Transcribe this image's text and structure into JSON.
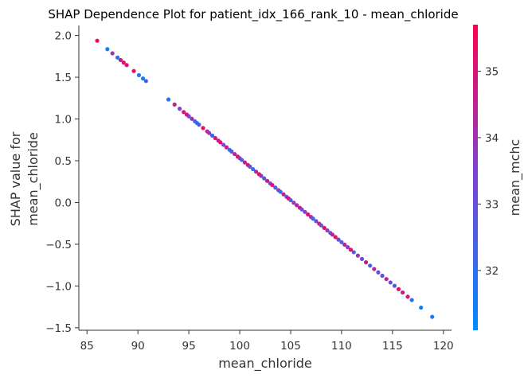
{
  "chart_data": {
    "type": "scatter",
    "title": "SHAP Dependence Plot for patient_idx_166_rank_10 - mean_chloride",
    "xlabel": "mean_chloride",
    "ylabel_lines": [
      "SHAP value for",
      "mean_chloride"
    ],
    "xlim": [
      84.2,
      120.8
    ],
    "ylim": [
      -1.53,
      2.12
    ],
    "xticks": [
      85,
      90,
      95,
      100,
      105,
      110,
      115,
      120
    ],
    "yticks": [
      -1.5,
      -1.0,
      -0.5,
      0.0,
      0.5,
      1.0,
      1.5,
      2.0
    ],
    "xtick_labels": [
      "85",
      "90",
      "95",
      "100",
      "105",
      "110",
      "115",
      "120"
    ],
    "ytick_labels": [
      "−1.5",
      "−1.0",
      "−0.5",
      "0.0",
      "0.5",
      "1.0",
      "1.5",
      "2.0"
    ],
    "relationship": {
      "slope": -0.1005,
      "intercept": 10.58
    },
    "colorbar": {
      "label": "mean_mchc",
      "range": [
        31.1,
        35.7
      ],
      "ticks": [
        32,
        33,
        34,
        35
      ],
      "tick_labels": [
        "32",
        "33",
        "34",
        "35"
      ],
      "colormap": [
        "#008afb",
        "#7c43d1",
        "#ff0052"
      ]
    },
    "points": [
      [
        86.0,
        35.5
      ],
      [
        87.0,
        31.5
      ],
      [
        87.5,
        34.0
      ],
      [
        88.0,
        32.2
      ],
      [
        88.3,
        34.6
      ],
      [
        88.6,
        35.3
      ],
      [
        88.9,
        35.1
      ],
      [
        89.6,
        35.4
      ],
      [
        90.1,
        31.8
      ],
      [
        90.5,
        31.6
      ],
      [
        90.8,
        32.4
      ],
      [
        93.0,
        31.7
      ],
      [
        93.6,
        34.6
      ],
      [
        94.1,
        33.5
      ],
      [
        94.5,
        34.9
      ],
      [
        94.8,
        35.1
      ],
      [
        95.0,
        33.2
      ],
      [
        95.3,
        34.0
      ],
      [
        95.6,
        32.5
      ],
      [
        95.8,
        31.9
      ],
      [
        96.0,
        32.7
      ],
      [
        96.4,
        35.2
      ],
      [
        96.8,
        34.3
      ],
      [
        97.0,
        33.8
      ],
      [
        97.3,
        32.2
      ],
      [
        97.6,
        35.0
      ],
      [
        97.9,
        34.5
      ],
      [
        98.1,
        35.4
      ],
      [
        98.4,
        33.3
      ],
      [
        98.7,
        34.8
      ],
      [
        99.0,
        31.7
      ],
      [
        99.2,
        32.9
      ],
      [
        99.5,
        34.2
      ],
      [
        99.8,
        35.3
      ],
      [
        100.0,
        33.6
      ],
      [
        100.2,
        32.4
      ],
      [
        100.5,
        34.7
      ],
      [
        100.8,
        35.0
      ],
      [
        101.0,
        33.1
      ],
      [
        101.3,
        32.0
      ],
      [
        101.6,
        34.4
      ],
      [
        101.9,
        35.2
      ],
      [
        102.1,
        33.7
      ],
      [
        102.4,
        32.6
      ],
      [
        102.7,
        34.9
      ],
      [
        103.0,
        33.4
      ],
      [
        103.2,
        35.1
      ],
      [
        103.5,
        32.3
      ],
      [
        103.8,
        33.9
      ],
      [
        104.0,
        31.8
      ],
      [
        104.3,
        34.6
      ],
      [
        104.6,
        33.0
      ],
      [
        104.8,
        35.4
      ],
      [
        105.0,
        32.5
      ],
      [
        105.3,
        33.8
      ],
      [
        105.6,
        34.3
      ],
      [
        105.9,
        35.0
      ],
      [
        106.1,
        32.8
      ],
      [
        106.4,
        33.5
      ],
      [
        106.7,
        35.3
      ],
      [
        107.0,
        34.1
      ],
      [
        107.2,
        32.1
      ],
      [
        107.5,
        33.3
      ],
      [
        107.8,
        34.8
      ],
      [
        108.0,
        32.6
      ],
      [
        108.3,
        35.2
      ],
      [
        108.6,
        33.7
      ],
      [
        108.9,
        32.9
      ],
      [
        109.1,
        34.5
      ],
      [
        109.4,
        35.1
      ],
      [
        109.7,
        33.2
      ],
      [
        110.0,
        32.4
      ],
      [
        110.3,
        34.7
      ],
      [
        110.6,
        33.6
      ],
      [
        110.9,
        35.3
      ],
      [
        111.2,
        32.7
      ],
      [
        111.6,
        34.0
      ],
      [
        112.0,
        33.1
      ],
      [
        112.4,
        35.0
      ],
      [
        112.8,
        32.5
      ],
      [
        113.2,
        34.4
      ],
      [
        113.6,
        33.3
      ],
      [
        114.0,
        32.9
      ],
      [
        114.4,
        34.6
      ],
      [
        114.8,
        33.0
      ],
      [
        115.2,
        32.6
      ],
      [
        115.6,
        35.2
      ],
      [
        116.0,
        34.9
      ],
      [
        116.5,
        35.1
      ],
      [
        116.9,
        32.0
      ],
      [
        117.8,
        31.5
      ],
      [
        118.9,
        31.6
      ]
    ]
  }
}
